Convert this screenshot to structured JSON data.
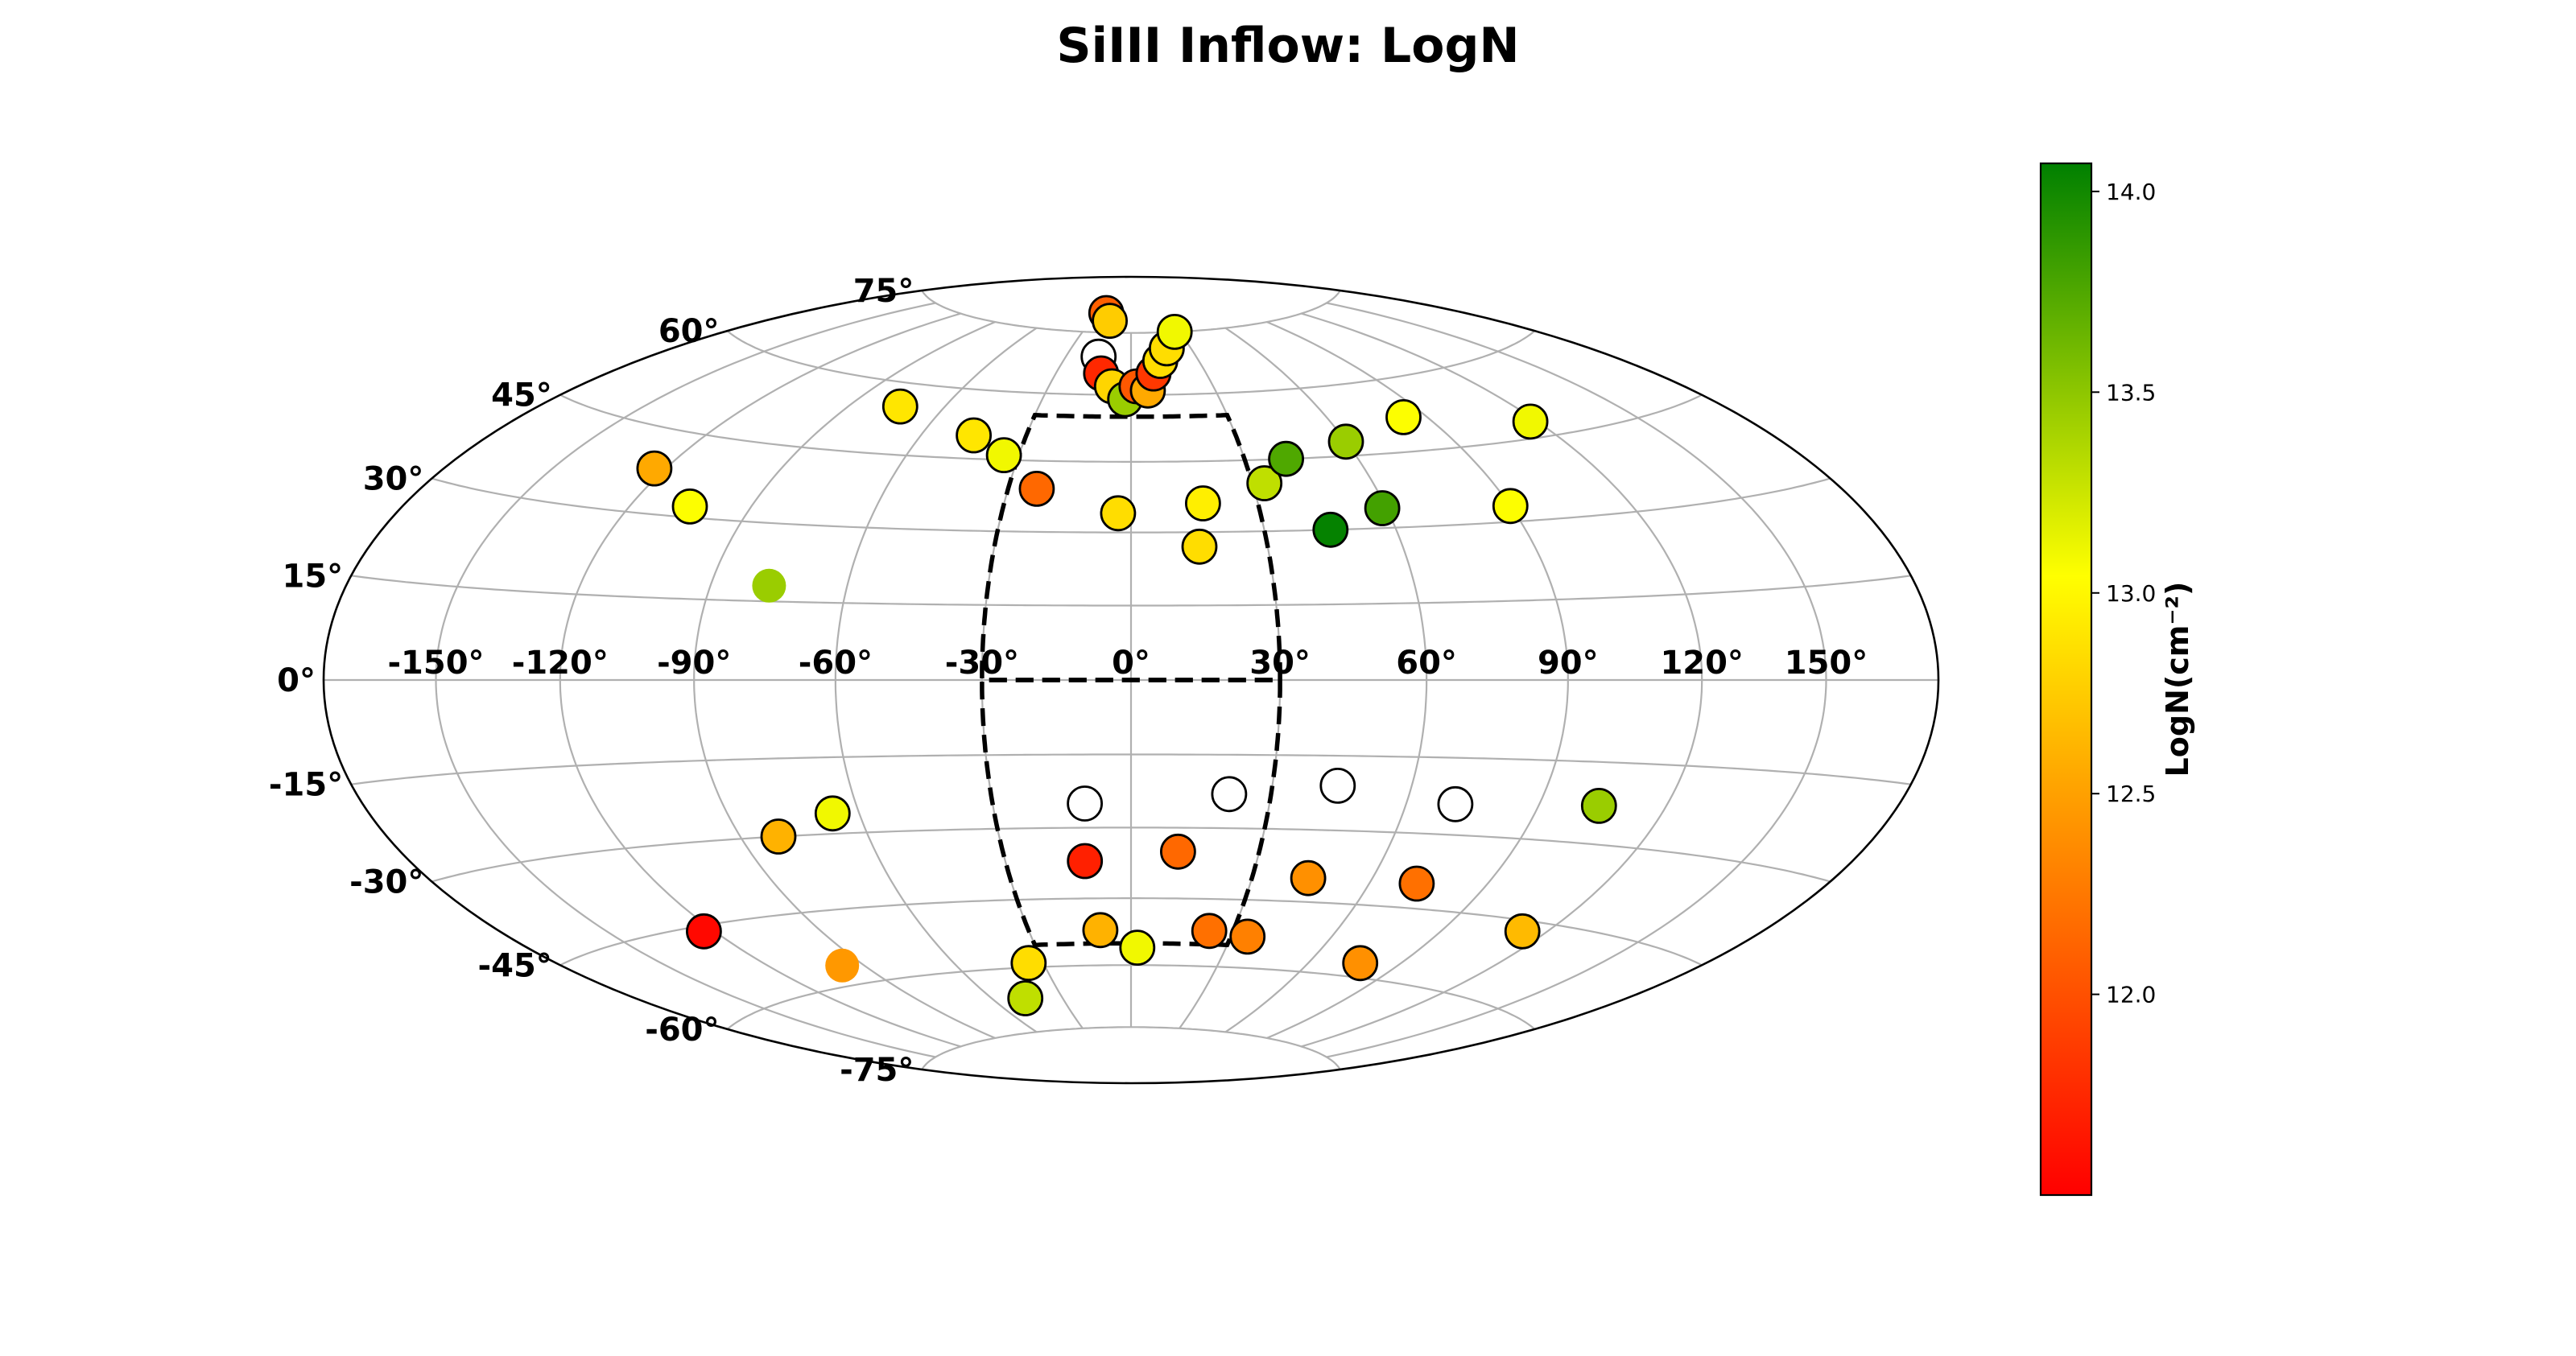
{
  "chart_data": {
    "type": "scatter",
    "projection": "Hammer-Aitoff",
    "title": "SiIII Inflow: LogN",
    "colorbar": {
      "label": "LogN(cm⁻²)",
      "range": [
        11.5,
        14.07
      ],
      "ticks": [
        "12.0",
        "12.5",
        "13.0",
        "13.5",
        "14.0"
      ],
      "tick_values": [
        12.0,
        12.5,
        13.0,
        13.5,
        14.0
      ],
      "colors": {
        "low": "#ff0000",
        "mid_low": "#ffa500",
        "mid": "#ffff00",
        "high": "#008000"
      }
    },
    "lon_ticks": [
      "-150°",
      "-120°",
      "-90°",
      "-60°",
      "-30°",
      "0°",
      "30°",
      "60°",
      "90°",
      "120°",
      "150°"
    ],
    "lon_tick_values": [
      -150,
      -120,
      -90,
      -60,
      -30,
      0,
      30,
      60,
      90,
      120,
      150
    ],
    "lat_ticks": [
      "75°",
      "60°",
      "45°",
      "30°",
      "15°",
      "0°",
      "-15°",
      "-30°",
      "-45°",
      "-60°",
      "-75°"
    ],
    "lat_tick_values": [
      75,
      60,
      45,
      30,
      15,
      0,
      -15,
      -30,
      -45,
      -60,
      -75
    ],
    "grid": true,
    "avoidance_region": {
      "lon_half_width_deg": 30,
      "lat_max_deg": 55,
      "style": "dashed"
    },
    "points": [
      {
        "lon": -22,
        "lat": 80,
        "logN": 12.1
      },
      {
        "lon": -16,
        "lat": 78,
        "logN": 12.75
      },
      {
        "lon": -15,
        "lat": 69,
        "logN": null,
        "outline_only": true
      },
      {
        "lon": -12,
        "lat": 65,
        "logN": 11.75
      },
      {
        "lon": -7,
        "lat": 62,
        "logN": 12.8
      },
      {
        "lon": -2,
        "lat": 59,
        "logN": 13.45
      },
      {
        "lon": 2,
        "lat": 62,
        "logN": 12.05
      },
      {
        "lon": 6,
        "lat": 61,
        "logN": 12.55
      },
      {
        "lon": 9,
        "lat": 65,
        "logN": 11.85
      },
      {
        "lon": 13,
        "lat": 68,
        "logN": 12.85
      },
      {
        "lon": 18,
        "lat": 71,
        "logN": 12.85
      },
      {
        "lon": 27,
        "lat": 75,
        "logN": 13.1
      },
      {
        "lon": -74,
        "lat": 55,
        "logN": 12.9
      },
      {
        "lon": -45,
        "lat": 50,
        "logN": 12.9
      },
      {
        "lon": -34,
        "lat": 46,
        "logN": 13.1
      },
      {
        "lon": -23,
        "lat": 39,
        "logN": 12.15
      },
      {
        "lon": -3,
        "lat": 34,
        "logN": 12.85
      },
      {
        "lon": 17,
        "lat": 36,
        "logN": 12.95
      },
      {
        "lon": 33,
        "lat": 40,
        "logN": 13.3
      },
      {
        "lon": 41,
        "lat": 45,
        "logN": 13.75
      },
      {
        "lon": 60,
        "lat": 48,
        "logN": 13.45
      },
      {
        "lon": 83,
        "lat": 52,
        "logN": 13.05
      },
      {
        "lon": 118,
        "lat": 48,
        "logN": 13.1
      },
      {
        "lon": -123,
        "lat": 38,
        "logN": 12.55
      },
      {
        "lon": -105,
        "lat": 32,
        "logN": 13.05
      },
      {
        "lon": 15,
        "lat": 27,
        "logN": 12.85
      },
      {
        "lon": 45,
        "lat": 30,
        "logN": 14.05
      },
      {
        "lon": 59,
        "lat": 34,
        "logN": 13.8
      },
      {
        "lon": 90,
        "lat": 33,
        "logN": 13.05
      },
      {
        "lon": -77,
        "lat": 18,
        "logN": 13.45,
        "no_outline": true
      },
      {
        "lon": -81,
        "lat": -30,
        "logN": 12.6
      },
      {
        "lon": -66,
        "lat": -26,
        "logN": 13.1
      },
      {
        "lon": -123,
        "lat": -46,
        "logN": 11.55
      },
      {
        "lon": -97,
        "lat": -56,
        "logN": 12.45,
        "no_outline": true
      },
      {
        "lon": -10,
        "lat": -25,
        "logN": null,
        "outline_only": true
      },
      {
        "lon": 21,
        "lat": -23,
        "logN": null,
        "outline_only": true
      },
      {
        "lon": 44,
        "lat": -21,
        "logN": null,
        "outline_only": true
      },
      {
        "lon": 71,
        "lat": -24,
        "logN": null,
        "outline_only": true
      },
      {
        "lon": 104,
        "lat": -23,
        "logN": 13.45
      },
      {
        "lon": -11,
        "lat": -37,
        "logN": 11.7
      },
      {
        "lon": 11,
        "lat": -35,
        "logN": 12.15
      },
      {
        "lon": 44,
        "lat": -40,
        "logN": 12.4
      },
      {
        "lon": 72,
        "lat": -40,
        "logN": 12.2
      },
      {
        "lon": 113,
        "lat": -47,
        "logN": 12.65
      },
      {
        "lon": -9,
        "lat": -52,
        "logN": 12.6
      },
      {
        "lon": 2,
        "lat": -56,
        "logN": 13.1
      },
      {
        "lon": 23,
        "lat": -52,
        "logN": 12.2
      },
      {
        "lon": 35,
        "lat": -53,
        "logN": 12.3
      },
      {
        "lon": 77,
        "lat": -57,
        "logN": 12.4
      },
      {
        "lon": -35,
        "lat": -59,
        "logN": 12.85
      },
      {
        "lon": -46,
        "lat": -67,
        "logN": 13.3
      }
    ]
  }
}
